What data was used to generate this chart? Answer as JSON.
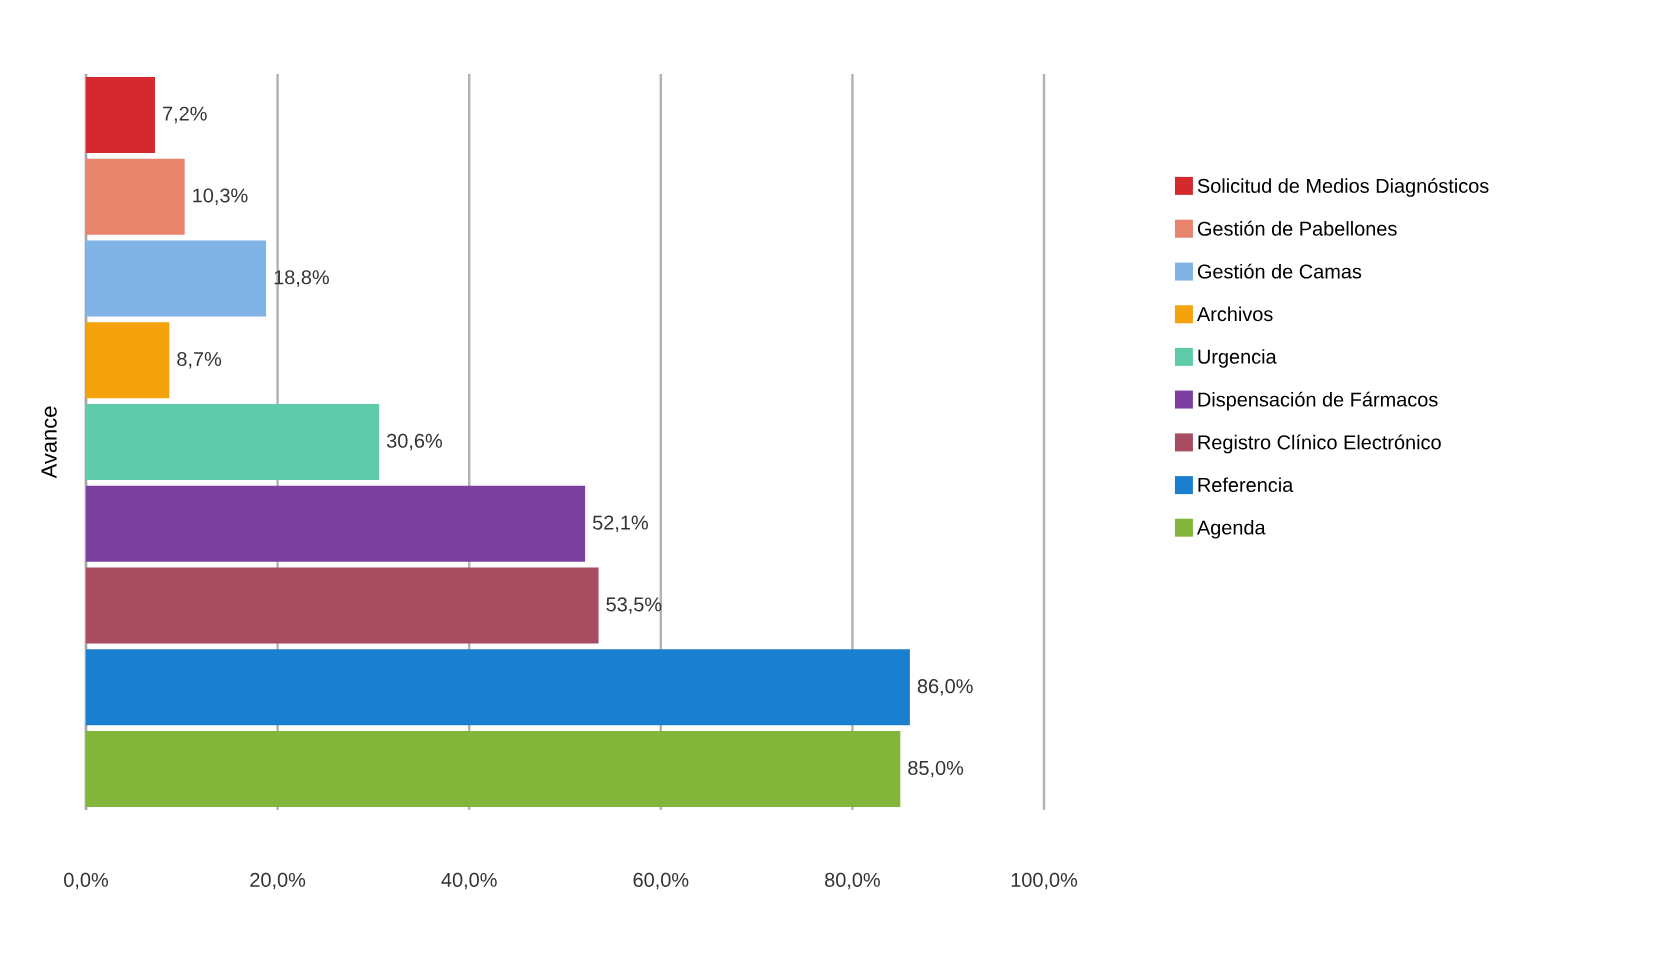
{
  "chart_data": {
    "type": "bar",
    "orientation": "horizontal",
    "ylabel": "Avance",
    "categories": [
      null,
      null,
      null,
      null,
      null,
      null,
      null,
      null,
      null
    ],
    "series": [
      {
        "name": "Solicitud de Medios Diagnósticos",
        "color": "#d42a2f",
        "values": [
          7.2,
          null,
          null,
          null,
          null,
          null,
          null,
          null,
          null
        ],
        "value_labels": [
          "7,2%",
          null,
          null,
          null,
          null,
          null,
          null,
          null,
          null
        ]
      },
      {
        "name": "Gestión de Pabellones",
        "color": "#e8836c",
        "values": [
          null,
          10.3,
          null,
          null,
          null,
          null,
          null,
          null,
          null
        ],
        "value_labels": [
          null,
          "10,3%",
          null,
          null,
          null,
          null,
          null,
          null,
          null
        ]
      },
      {
        "name": "Gestión de Camas",
        "color": "#80b3e6",
        "values": [
          null,
          null,
          18.8,
          null,
          null,
          null,
          null,
          null,
          null
        ],
        "value_labels": [
          null,
          null,
          "18,8%",
          null,
          null,
          null,
          null,
          null,
          null
        ]
      },
      {
        "name": "Archivos",
        "color": "#f5a30c",
        "values": [
          null,
          null,
          null,
          8.7,
          null,
          null,
          null,
          null,
          null
        ],
        "value_labels": [
          null,
          null,
          null,
          "8,7%",
          null,
          null,
          null,
          null,
          null
        ]
      },
      {
        "name": "Urgencia",
        "color": "#5fcbaa",
        "values": [
          null,
          null,
          null,
          null,
          30.6,
          null,
          null,
          null,
          null
        ],
        "value_labels": [
          null,
          null,
          null,
          null,
          "30,6%",
          null,
          null,
          null,
          null
        ]
      },
      {
        "name": "Dispensación de Fármacos",
        "color": "#7b40a0",
        "values": [
          null,
          null,
          null,
          null,
          null,
          52.1,
          null,
          null,
          null
        ],
        "value_labels": [
          null,
          null,
          null,
          null,
          null,
          "52,1%",
          null,
          null,
          null
        ]
      },
      {
        "name": "Registro Clínico Electrónico",
        "color": "#a84c61",
        "values": [
          null,
          null,
          null,
          null,
          null,
          null,
          53.5,
          null,
          null
        ],
        "value_labels": [
          null,
          null,
          null,
          null,
          null,
          null,
          "53,5%",
          null,
          null
        ]
      },
      {
        "name": "Referencia",
        "color": "#1b7fd0",
        "values": [
          null,
          null,
          null,
          null,
          null,
          null,
          null,
          86.0,
          null
        ],
        "value_labels": [
          null,
          null,
          null,
          null,
          null,
          null,
          null,
          "86,0%",
          null
        ]
      },
      {
        "name": "Agenda",
        "color": "#84b53b",
        "values": [
          null,
          null,
          null,
          null,
          null,
          null,
          null,
          null,
          85.0
        ],
        "value_labels": [
          null,
          null,
          null,
          null,
          null,
          null,
          null,
          null,
          "85,0%"
        ]
      }
    ],
    "xlim": [
      0,
      100
    ],
    "xticks": [
      {
        "value": 0,
        "label": "0,0%"
      },
      {
        "value": 20,
        "label": "20,0%"
      },
      {
        "value": 40,
        "label": "40,0%"
      },
      {
        "value": 60,
        "label": "60,0%"
      },
      {
        "value": 80,
        "label": "80,0%"
      },
      {
        "value": 100,
        "label": "100,0%"
      }
    ],
    "grid": "x",
    "legend": "right"
  }
}
